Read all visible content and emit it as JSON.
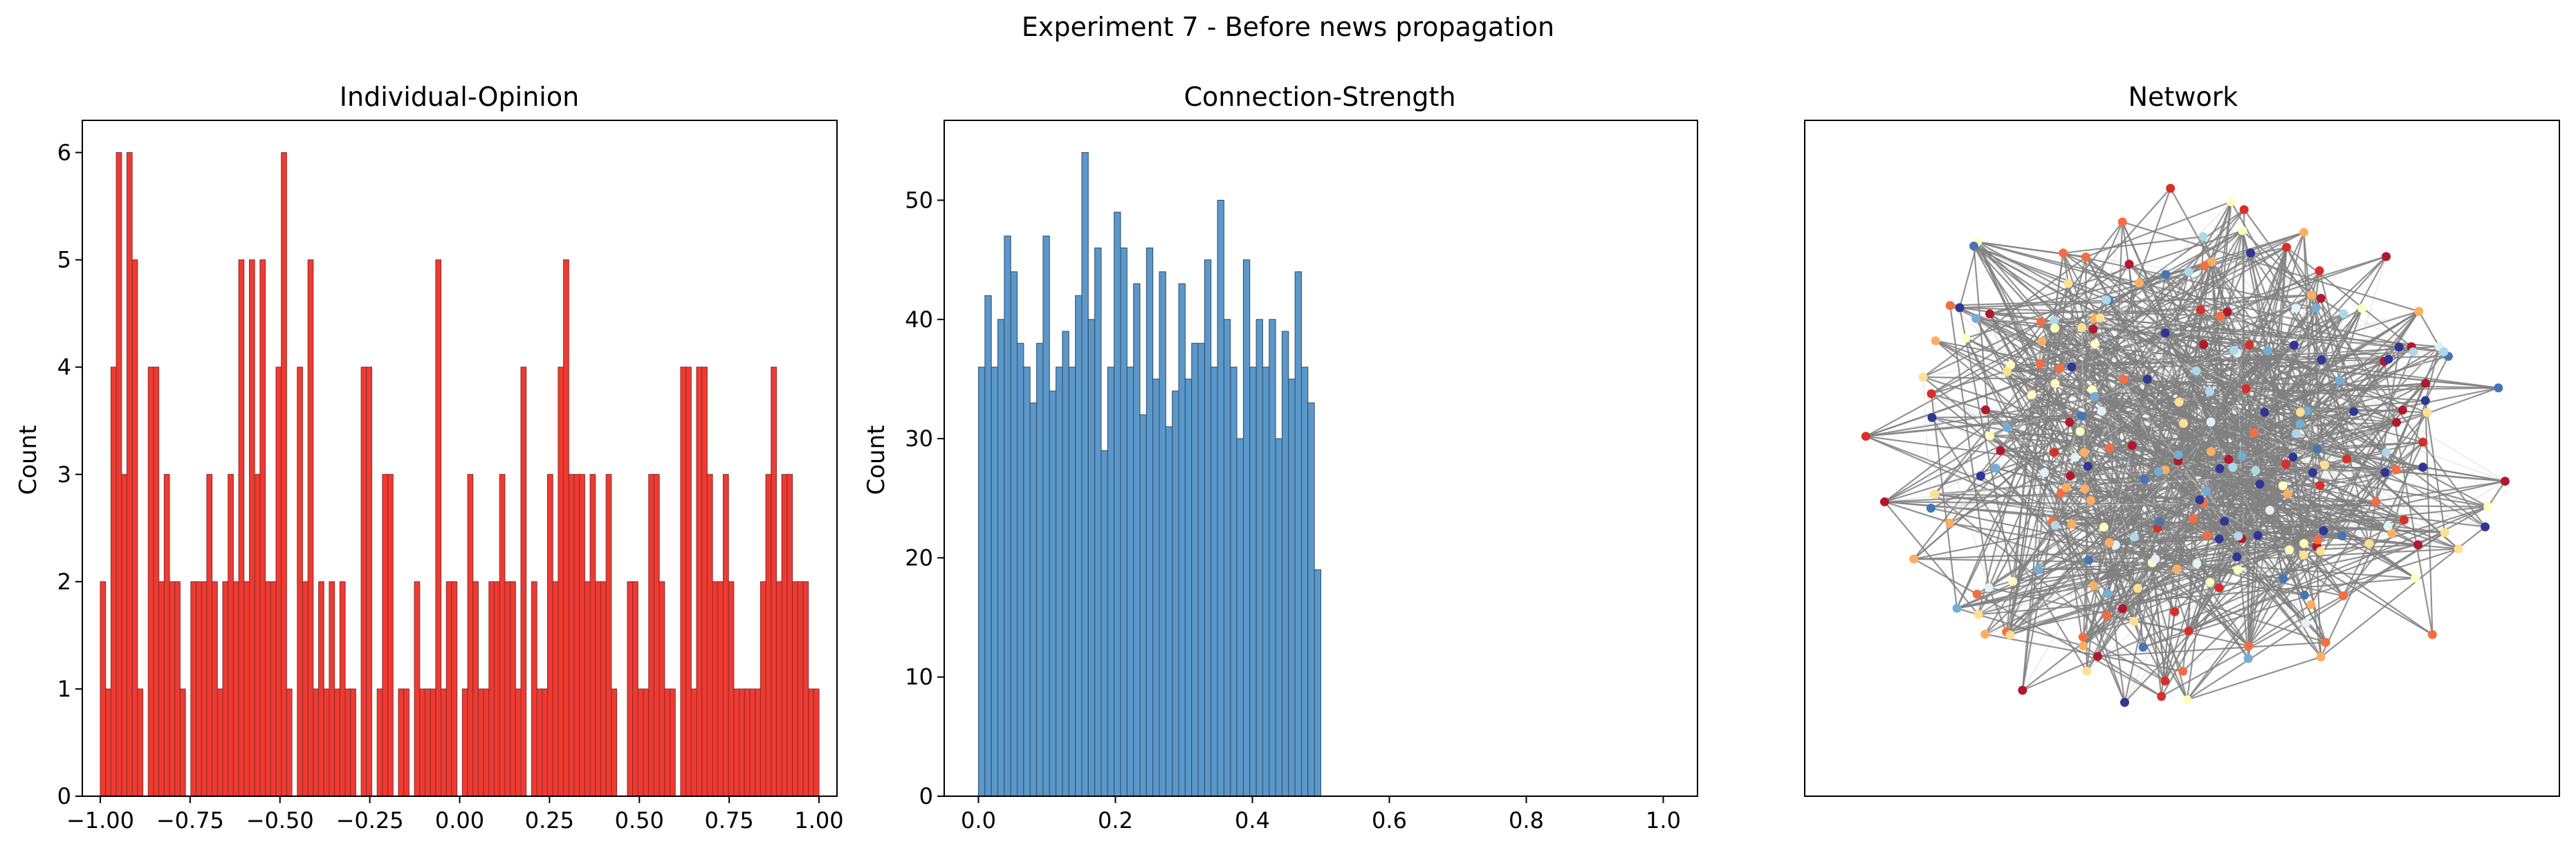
{
  "figure": {
    "suptitle": "Experiment 7 - Before news propagation"
  },
  "chart_data": [
    {
      "type": "bar",
      "title": "Individual-Opinion",
      "xlabel": "",
      "ylabel": "Count",
      "xlim": [
        -1.05,
        1.05
      ],
      "ylim": [
        0,
        6.3
      ],
      "x_ticks": [
        -1.0,
        -0.75,
        -0.5,
        -0.25,
        0.0,
        0.25,
        0.5,
        0.75,
        1.0
      ],
      "x_tick_labels": [
        "−1.00",
        "−0.75",
        "−0.50",
        "−0.25",
        "0.00",
        "0.25",
        "0.50",
        "0.75",
        "1.00"
      ],
      "y_ticks": [
        0,
        1,
        2,
        3,
        4,
        5,
        6
      ],
      "y_tick_labels": [
        "0",
        "1",
        "2",
        "3",
        "4",
        "5",
        "6"
      ],
      "bar_color": "#ee3b32",
      "edge_color": "#8b2a2a",
      "bins_start": -1.0,
      "bins_end": 1.0,
      "values": [
        2,
        1,
        4,
        6,
        3,
        6,
        5,
        1,
        0,
        4,
        4,
        2,
        3,
        2,
        2,
        1,
        0,
        2,
        2,
        2,
        3,
        2,
        1,
        2,
        3,
        2,
        5,
        2,
        5,
        3,
        5,
        2,
        2,
        4,
        6,
        1,
        0,
        4,
        2,
        5,
        1,
        2,
        1,
        2,
        1,
        2,
        1,
        1,
        0,
        4,
        4,
        0,
        1,
        3,
        3,
        0,
        1,
        1,
        0,
        2,
        1,
        1,
        1,
        5,
        1,
        2,
        2,
        0,
        1,
        3,
        2,
        1,
        1,
        2,
        2,
        3,
        2,
        2,
        1,
        4,
        0,
        2,
        1,
        1,
        3,
        2,
        4,
        5,
        3,
        3,
        3,
        2,
        3,
        2,
        2,
        3,
        1,
        0,
        0,
        2,
        2,
        1,
        1,
        3,
        3,
        2,
        1,
        1,
        0,
        4,
        4,
        1,
        4,
        4,
        3,
        2,
        2,
        3,
        2,
        1,
        1,
        1,
        1,
        1,
        2,
        3,
        4,
        2,
        3,
        3,
        2,
        2,
        2,
        1,
        1
      ]
    },
    {
      "type": "bar",
      "title": "Connection-Strength",
      "xlabel": "",
      "ylabel": "Count",
      "xlim": [
        -0.05,
        1.05
      ],
      "ylim": [
        0,
        56.7
      ],
      "x_ticks": [
        0.0,
        0.2,
        0.4,
        0.6,
        0.8,
        1.0
      ],
      "x_tick_labels": [
        "0.0",
        "0.2",
        "0.4",
        "0.6",
        "0.8",
        "1.0"
      ],
      "y_ticks": [
        0,
        10,
        20,
        30,
        40,
        50
      ],
      "y_tick_labels": [
        "0",
        "10",
        "20",
        "30",
        "40",
        "50"
      ],
      "bar_color": "#5b97c9",
      "edge_color": "#2e4d66",
      "bins_start": 0.0,
      "bins_end": 0.5,
      "values": [
        36,
        42,
        36,
        40,
        47,
        44,
        38,
        36,
        33,
        38,
        47,
        34,
        36,
        39,
        36,
        42,
        54,
        40,
        46,
        29,
        36,
        49,
        46,
        36,
        43,
        32,
        46,
        35,
        44,
        31,
        34,
        43,
        35,
        38,
        38,
        45,
        36,
        50,
        40,
        36,
        30,
        45,
        36,
        40,
        36,
        40,
        30,
        39,
        35,
        44,
        36,
        33,
        19
      ]
    },
    {
      "type": "scatter",
      "title": "Network",
      "xlabel": "",
      "ylabel": "",
      "grid": false,
      "node_colors": [
        "#b2182b",
        "#d73027",
        "#f46d43",
        "#fdae61",
        "#fee090",
        "#ffffbf",
        "#e0f3f8",
        "#abd9e9",
        "#74add1",
        "#4575b4",
        "#313695"
      ],
      "edge_color": "#808080"
    }
  ]
}
